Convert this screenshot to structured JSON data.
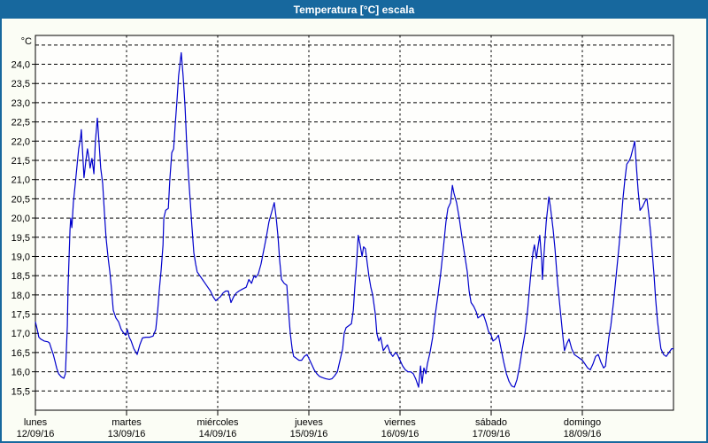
{
  "window": {
    "title": "Temperatura [°C] escala"
  },
  "colors": {
    "titlebar_bg": "#17689e",
    "frame_border": "#17689e",
    "page_bg": "#fbfdf5",
    "plot_bg": "#fefefc",
    "line": "#0000cc",
    "grid": "#000000",
    "text": "#000000"
  },
  "chart_data": {
    "type": "line",
    "title": "Temperatura [°C] escala",
    "y_unit_label": "°C",
    "grid": "dashed",
    "legend": "none",
    "y_axis": {
      "min": 15.0,
      "max": 24.75,
      "gridline_min": 15.5,
      "gridline_max": 24.5,
      "gridline_step": 0.5,
      "tick_labels": [
        "24,0",
        "23,5",
        "23,0",
        "22,5",
        "22,0",
        "21,5",
        "21,0",
        "20,5",
        "20,0",
        "19,5",
        "19,0",
        "18,5",
        "18,0",
        "17,5",
        "17,0",
        "16,5",
        "16,0",
        "15,5"
      ]
    },
    "x_axis": {
      "unit": "hours_from_monday_00",
      "range_hours": [
        0,
        168
      ],
      "days": [
        {
          "name": "lunes",
          "date": "12/09/16"
        },
        {
          "name": "martes",
          "date": "13/09/16"
        },
        {
          "name": "miércoles",
          "date": "14/09/16"
        },
        {
          "name": "jueves",
          "date": "15/09/16"
        },
        {
          "name": "viernes",
          "date": "16/09/16"
        },
        {
          "name": "sábado",
          "date": "17/09/16"
        },
        {
          "name": "domingo",
          "date": "18/09/16"
        }
      ]
    },
    "series": [
      {
        "name": "Temperatura",
        "color": "#0000cc",
        "points": [
          [
            0,
            17.3
          ],
          [
            0.5,
            17.1
          ],
          [
            0.9,
            16.9
          ],
          [
            1.4,
            16.85
          ],
          [
            2.3,
            16.8
          ],
          [
            3.3,
            16.78
          ],
          [
            3.7,
            16.75
          ],
          [
            4.2,
            16.6
          ],
          [
            4.7,
            16.45
          ],
          [
            5.1,
            16.3
          ],
          [
            5.6,
            16.1
          ],
          [
            6.1,
            15.95
          ],
          [
            6.8,
            15.87
          ],
          [
            7.5,
            15.83
          ],
          [
            7.9,
            15.95
          ],
          [
            8.4,
            17.2
          ],
          [
            8.6,
            18.2
          ],
          [
            9.1,
            19.7
          ],
          [
            9.3,
            20.0
          ],
          [
            9.6,
            19.75
          ],
          [
            10.0,
            20.4
          ],
          [
            10.5,
            20.9
          ],
          [
            11.0,
            21.4
          ],
          [
            11.4,
            21.8
          ],
          [
            11.9,
            22.1
          ],
          [
            12.1,
            22.3
          ],
          [
            12.6,
            21.4
          ],
          [
            12.8,
            21.05
          ],
          [
            13.3,
            21.5
          ],
          [
            13.7,
            21.8
          ],
          [
            14.2,
            21.5
          ],
          [
            14.4,
            21.3
          ],
          [
            14.9,
            21.55
          ],
          [
            15.4,
            21.15
          ],
          [
            15.8,
            22.0
          ],
          [
            16.3,
            22.6
          ],
          [
            16.8,
            21.9
          ],
          [
            17.2,
            21.3
          ],
          [
            17.7,
            20.9
          ],
          [
            18.2,
            20.1
          ],
          [
            18.6,
            19.5
          ],
          [
            19.1,
            19.0
          ],
          [
            19.6,
            18.6
          ],
          [
            20.0,
            18.2
          ],
          [
            20.5,
            17.6
          ],
          [
            21.2,
            17.4
          ],
          [
            21.9,
            17.3
          ],
          [
            22.6,
            17.1
          ],
          [
            23.3,
            17.0
          ],
          [
            23.8,
            16.95
          ],
          [
            24.2,
            17.1
          ],
          [
            24.7,
            16.9
          ],
          [
            25.2,
            16.8
          ],
          [
            25.9,
            16.6
          ],
          [
            26.8,
            16.45
          ],
          [
            27.5,
            16.7
          ],
          [
            28.2,
            16.88
          ],
          [
            29.1,
            16.9
          ],
          [
            30.1,
            16.9
          ],
          [
            31.0,
            16.93
          ],
          [
            31.7,
            17.1
          ],
          [
            32.2,
            17.6
          ],
          [
            32.6,
            18.1
          ],
          [
            33.1,
            18.65
          ],
          [
            33.6,
            19.3
          ],
          [
            33.8,
            20.0
          ],
          [
            34.3,
            20.2
          ],
          [
            35.0,
            20.25
          ],
          [
            35.4,
            21.0
          ],
          [
            35.9,
            21.7
          ],
          [
            36.4,
            21.8
          ],
          [
            36.8,
            22.4
          ],
          [
            37.3,
            23.1
          ],
          [
            37.7,
            23.7
          ],
          [
            38.4,
            24.3
          ],
          [
            38.9,
            23.7
          ],
          [
            39.4,
            22.9
          ],
          [
            39.8,
            22.0
          ],
          [
            40.3,
            21.1
          ],
          [
            40.8,
            20.4
          ],
          [
            41.2,
            19.8
          ],
          [
            41.7,
            19.1
          ],
          [
            42.2,
            18.8
          ],
          [
            42.6,
            18.6
          ],
          [
            43.3,
            18.5
          ],
          [
            44.0,
            18.4
          ],
          [
            44.7,
            18.3
          ],
          [
            45.4,
            18.2
          ],
          [
            46.1,
            18.1
          ],
          [
            46.8,
            17.95
          ],
          [
            47.5,
            17.85
          ],
          [
            48.0,
            17.9
          ],
          [
            48.7,
            17.95
          ],
          [
            49.4,
            18.05
          ],
          [
            50.1,
            18.1
          ],
          [
            50.8,
            18.1
          ],
          [
            51.5,
            17.8
          ],
          [
            52.2,
            17.95
          ],
          [
            52.9,
            18.05
          ],
          [
            53.6,
            18.1
          ],
          [
            54.5,
            18.15
          ],
          [
            55.5,
            18.2
          ],
          [
            56.2,
            18.4
          ],
          [
            56.9,
            18.3
          ],
          [
            57.6,
            18.5
          ],
          [
            58.0,
            18.45
          ],
          [
            58.7,
            18.55
          ],
          [
            59.4,
            18.8
          ],
          [
            60.1,
            19.15
          ],
          [
            60.8,
            19.5
          ],
          [
            61.5,
            19.9
          ],
          [
            62.2,
            20.15
          ],
          [
            62.9,
            20.4
          ],
          [
            63.4,
            20.0
          ],
          [
            63.9,
            19.5
          ],
          [
            64.3,
            18.9
          ],
          [
            64.8,
            18.4
          ],
          [
            65.5,
            18.3
          ],
          [
            66.2,
            18.25
          ],
          [
            66.7,
            17.5
          ],
          [
            67.1,
            17.0
          ],
          [
            67.6,
            16.6
          ],
          [
            68.0,
            16.4
          ],
          [
            68.7,
            16.35
          ],
          [
            69.4,
            16.3
          ],
          [
            70.1,
            16.3
          ],
          [
            70.8,
            16.4
          ],
          [
            71.5,
            16.45
          ],
          [
            72.0,
            16.35
          ],
          [
            72.7,
            16.2
          ],
          [
            73.4,
            16.05
          ],
          [
            74.1,
            15.95
          ],
          [
            74.8,
            15.88
          ],
          [
            75.5,
            15.85
          ],
          [
            76.4,
            15.82
          ],
          [
            77.4,
            15.8
          ],
          [
            78.1,
            15.82
          ],
          [
            78.8,
            15.9
          ],
          [
            79.5,
            16.0
          ],
          [
            80.2,
            16.3
          ],
          [
            80.9,
            16.6
          ],
          [
            81.3,
            17.0
          ],
          [
            81.8,
            17.15
          ],
          [
            82.5,
            17.2
          ],
          [
            83.2,
            17.25
          ],
          [
            83.7,
            17.6
          ],
          [
            84.1,
            18.2
          ],
          [
            84.6,
            18.9
          ],
          [
            85.0,
            19.55
          ],
          [
            85.5,
            19.3
          ],
          [
            86.0,
            19.0
          ],
          [
            86.4,
            19.25
          ],
          [
            86.9,
            19.2
          ],
          [
            87.4,
            18.8
          ],
          [
            87.8,
            18.5
          ],
          [
            88.3,
            18.2
          ],
          [
            88.8,
            18.0
          ],
          [
            89.5,
            17.5
          ],
          [
            89.9,
            17.0
          ],
          [
            90.4,
            16.8
          ],
          [
            90.9,
            16.9
          ],
          [
            91.6,
            16.55
          ],
          [
            92.3,
            16.65
          ],
          [
            92.7,
            16.7
          ],
          [
            93.4,
            16.5
          ],
          [
            94.1,
            16.4
          ],
          [
            94.8,
            16.5
          ],
          [
            95.3,
            16.45
          ],
          [
            96.0,
            16.3
          ],
          [
            96.7,
            16.15
          ],
          [
            97.4,
            16.05
          ],
          [
            98.1,
            16.0
          ],
          [
            98.8,
            16.0
          ],
          [
            99.5,
            15.95
          ],
          [
            100.2,
            15.8
          ],
          [
            100.9,
            15.6
          ],
          [
            101.4,
            16.15
          ],
          [
            101.8,
            15.7
          ],
          [
            102.3,
            16.1
          ],
          [
            102.8,
            15.95
          ],
          [
            103.2,
            16.2
          ],
          [
            103.9,
            16.5
          ],
          [
            104.6,
            16.9
          ],
          [
            105.3,
            17.5
          ],
          [
            106.0,
            18.0
          ],
          [
            106.7,
            18.55
          ],
          [
            107.4,
            19.2
          ],
          [
            108.1,
            19.9
          ],
          [
            108.6,
            20.25
          ],
          [
            109.3,
            20.4
          ],
          [
            109.8,
            20.85
          ],
          [
            110.2,
            20.65
          ],
          [
            110.9,
            20.4
          ],
          [
            111.6,
            20.0
          ],
          [
            112.3,
            19.5
          ],
          [
            113.0,
            19.05
          ],
          [
            113.7,
            18.6
          ],
          [
            114.2,
            18.1
          ],
          [
            114.7,
            17.8
          ],
          [
            115.4,
            17.7
          ],
          [
            116.1,
            17.55
          ],
          [
            116.5,
            17.4
          ],
          [
            117.2,
            17.45
          ],
          [
            117.9,
            17.5
          ],
          [
            118.6,
            17.3
          ],
          [
            119.3,
            17.05
          ],
          [
            120.0,
            16.95
          ],
          [
            120.5,
            16.8
          ],
          [
            121.2,
            16.85
          ],
          [
            121.9,
            16.95
          ],
          [
            122.6,
            16.6
          ],
          [
            123.3,
            16.25
          ],
          [
            124.0,
            15.95
          ],
          [
            124.7,
            15.75
          ],
          [
            125.4,
            15.63
          ],
          [
            126.1,
            15.6
          ],
          [
            126.8,
            15.8
          ],
          [
            127.5,
            16.15
          ],
          [
            128.2,
            16.6
          ],
          [
            128.9,
            17.0
          ],
          [
            129.6,
            17.6
          ],
          [
            130.3,
            18.4
          ],
          [
            131.0,
            19.1
          ],
          [
            131.4,
            19.3
          ],
          [
            131.9,
            18.95
          ],
          [
            132.4,
            19.3
          ],
          [
            132.8,
            19.55
          ],
          [
            133.3,
            18.9
          ],
          [
            133.5,
            18.4
          ],
          [
            134.0,
            19.2
          ],
          [
            134.5,
            19.9
          ],
          [
            135.2,
            20.55
          ],
          [
            135.6,
            20.3
          ],
          [
            136.3,
            19.7
          ],
          [
            136.8,
            19.2
          ],
          [
            137.5,
            18.3
          ],
          [
            138.2,
            17.6
          ],
          [
            138.9,
            16.9
          ],
          [
            139.3,
            16.55
          ],
          [
            140.0,
            16.75
          ],
          [
            140.5,
            16.85
          ],
          [
            141.2,
            16.6
          ],
          [
            141.9,
            16.45
          ],
          [
            142.6,
            16.4
          ],
          [
            143.3,
            16.35
          ],
          [
            144.0,
            16.3
          ],
          [
            144.7,
            16.2
          ],
          [
            145.4,
            16.1
          ],
          [
            146.1,
            16.05
          ],
          [
            146.8,
            16.2
          ],
          [
            147.5,
            16.4
          ],
          [
            148.2,
            16.45
          ],
          [
            148.9,
            16.25
          ],
          [
            149.6,
            16.1
          ],
          [
            150.1,
            16.15
          ],
          [
            150.5,
            16.5
          ],
          [
            151.0,
            16.9
          ],
          [
            151.5,
            17.2
          ],
          [
            152.2,
            17.8
          ],
          [
            152.9,
            18.5
          ],
          [
            153.6,
            19.2
          ],
          [
            154.3,
            20.0
          ],
          [
            154.7,
            20.5
          ],
          [
            155.2,
            21.0
          ],
          [
            155.7,
            21.4
          ],
          [
            156.4,
            21.5
          ],
          [
            156.8,
            21.6
          ],
          [
            157.3,
            21.8
          ],
          [
            157.8,
            22.0
          ],
          [
            158.2,
            21.4
          ],
          [
            158.7,
            20.7
          ],
          [
            159.2,
            20.2
          ],
          [
            159.9,
            20.3
          ],
          [
            160.6,
            20.45
          ],
          [
            161.0,
            20.5
          ],
          [
            161.5,
            20.1
          ],
          [
            162.0,
            19.6
          ],
          [
            162.4,
            19.1
          ],
          [
            162.9,
            18.5
          ],
          [
            163.3,
            17.9
          ],
          [
            163.8,
            17.3
          ],
          [
            164.3,
            16.9
          ],
          [
            164.7,
            16.6
          ],
          [
            165.4,
            16.45
          ],
          [
            166.1,
            16.4
          ],
          [
            166.8,
            16.5
          ],
          [
            167.5,
            16.6
          ],
          [
            168.0,
            16.6
          ]
        ]
      }
    ]
  }
}
